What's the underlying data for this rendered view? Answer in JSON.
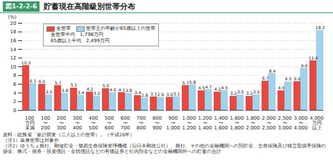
{
  "chart_data": {
    "type": "bar",
    "figure_number": "図1-2-2-6",
    "title": "貯蓄現在高階級別世帯分布",
    "y_label": "(%)",
    "categories": [
      "100\n万円\n未満",
      "100\n〜\n200",
      "200\n〜\n300",
      "300\n〜\n400",
      "400\n〜\n500",
      "500\n〜\n600",
      "600\n〜\n700",
      "700\n〜\n800",
      "800\n〜\n900",
      "900\n〜\n1,000",
      "1,000\n〜\n1,200",
      "1,200\n〜\n1,400",
      "1,400\n〜\n1,600",
      "1,600\n〜\n1,800",
      "1,800\n〜\n2,000",
      "2,000\n〜\n2,500",
      "2,500\n〜\n3,000",
      "3,000\n〜\n4,000",
      "4,000\n万円\n以上"
    ],
    "series": [
      {
        "name": "全世帯",
        "color": "#e9473f",
        "values": [
          10.3,
          6.0,
          5.7,
          5.1,
          4.2,
          5.0,
          4.1,
          3.4,
          3.1,
          3.0,
          5.7,
          4.5,
          4.2,
          3.2,
          3.2,
          6.7,
          4.5,
          6.6,
          11.4
        ],
        "value_labels": [
          "10.3",
          "6.0",
          "5.7",
          "5.1",
          "4.2",
          "5.0",
          "4.1",
          "3.4",
          "3.1",
          "3.0",
          "5.7",
          "4.5",
          "4.2",
          "3.2",
          "3.2",
          "6.7",
          "4.5",
          "6.6",
          "11.4"
        ]
      },
      {
        "name": "世帯主の年齢が65歳以上の世帯",
        "color": "#9fd3ee",
        "values": [
          6.1,
          3.5,
          3.8,
          3.4,
          3.2,
          4.0,
          3.8,
          2.8,
          2.9,
          3.1,
          5.8,
          4.7,
          4.5,
          3.5,
          3.5,
          8.4,
          6.5,
          9.6,
          18.3
        ],
        "value_labels": [
          "6.1",
          "3.5",
          "3.8",
          "3.4",
          "3.2",
          "4.0",
          "3.8",
          "2.8",
          "2.9",
          "3.1",
          "5.8",
          "4.7",
          "4.5",
          "3.5",
          "3.5",
          "8.4",
          "6.5",
          "9.6",
          "18.3"
        ]
      }
    ],
    "annotations": [
      "全世帯平均　1,798万円",
      "65歳以上平均　2,499万円"
    ],
    "ylim": [
      0,
      20
    ],
    "yticks": [
      0,
      2,
      4,
      6,
      8,
      10,
      12,
      14,
      16,
      18,
      20
    ],
    "grid": true,
    "legend": "top-left",
    "data_labels": true,
    "notes": [
      "資料：総務省「家計調査（二人以上の世帯）」（平成26年）",
      "（注1）単身世帯は対象外",
      "（注2）ゆうちょ銀行、郵便貯金・簡易生命保険管理機構（旧日本郵政公社）、銀行、その他の金融機関への預貯金、生命保険及び積立型損害保険の掛金、株式・債券・投資信託・金銭信託などの有価証券と社内預金などの金融機関外への貯蓄の合計"
    ]
  }
}
